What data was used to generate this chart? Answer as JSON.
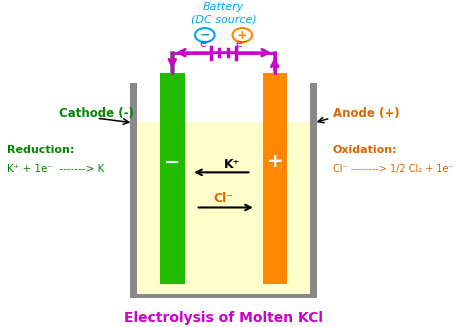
{
  "bg_color": "#ffffff",
  "beaker_color": "#888888",
  "liquid_color": "#ffffcc",
  "cathode_color": "#22bb00",
  "anode_color": "#ff8800",
  "wire_color": "#cc00cc",
  "title": "Electrolysis of Molten KCl",
  "title_color": "#cc00cc",
  "battery_label": "Battery\n(DC source)",
  "battery_label_color": "#00aaee",
  "cathode_label": "Cathode (-)",
  "cathode_label_color": "#008800",
  "anode_label": "Anode (+)",
  "anode_label_color": "#dd6600",
  "reduction_line1": "Reduction:",
  "reduction_line2": "K⁺ + 1e⁻  -------> K",
  "reduction_color": "#008800",
  "oxidation_line1": "Oxidation:",
  "oxidation_line2": "Cl⁻ --------> 1/2 Cl₂ + 1e⁻",
  "oxidation_color": "#dd6600",
  "neg_circle_color": "#00aaee",
  "pos_circle_color": "#ff8800",
  "electron_color": "#cc00cc",
  "kplus_color": "#000000",
  "clminus_color": "#dd6600"
}
